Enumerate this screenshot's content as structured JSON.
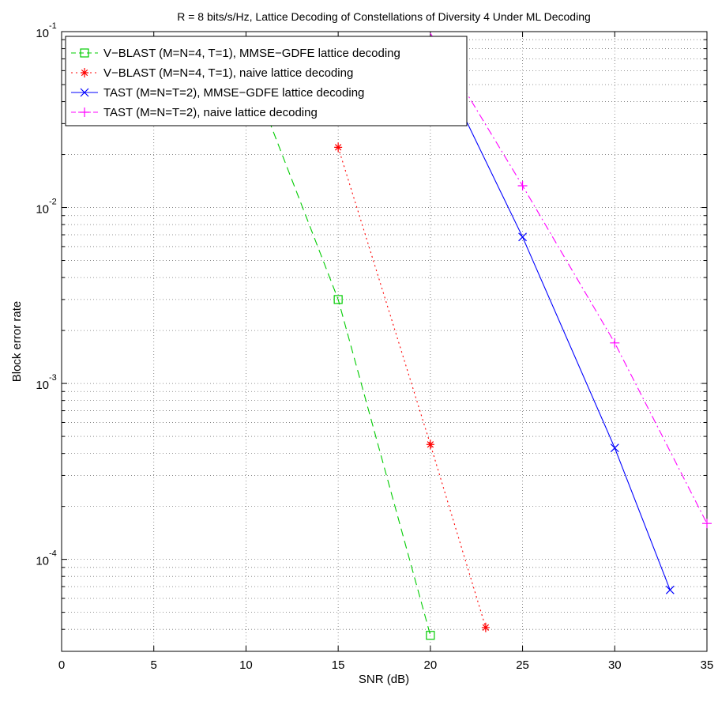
{
  "chart_data": {
    "type": "line",
    "title": "R = 8 bits/s/Hz, Lattice Decoding of Constellations of Diversity 4 Under ML Decoding",
    "xlabel": "SNR (dB)",
    "ylabel": "Block error rate",
    "xlim": [
      0,
      35
    ],
    "ylim": [
      3e-05,
      0.1
    ],
    "yscale": "log",
    "grid": true,
    "legend_position": "top-left",
    "x_ticks": [
      0,
      5,
      10,
      15,
      20,
      25,
      30,
      35
    ],
    "x_tick_labels": [
      "0",
      "5",
      "10",
      "15",
      "20",
      "25",
      "30",
      "35"
    ],
    "y_ticks": [
      0.0001,
      0.001,
      0.01,
      0.1
    ],
    "y_tick_labels": [
      {
        "base": "10",
        "exp": "-4"
      },
      {
        "base": "10",
        "exp": "-3"
      },
      {
        "base": "10",
        "exp": "-2"
      },
      {
        "base": "10",
        "exp": "-1"
      }
    ],
    "series": [
      {
        "name": "V−BLAST (M=N=4, T=1), MMSE−GDFE lattice decoding",
        "color": "#00cc00",
        "line_style": "dashed",
        "marker": "square",
        "x": [
          10,
          15,
          20
        ],
        "y": [
          0.068,
          0.003,
          3.7e-05
        ]
      },
      {
        "name": "V−BLAST (M=N=4, T=1), naive lattice decoding",
        "color": "#ff0000",
        "line_style": "dotted",
        "marker": "asterisk",
        "x": [
          15,
          20,
          23
        ],
        "y": [
          0.022,
          0.00045,
          4.1e-05
        ]
      },
      {
        "name": "TAST (M=N=T=2), MMSE−GDFE lattice decoding",
        "color": "#0000ff",
        "line_style": "solid",
        "marker": "x",
        "x": [
          20,
          25,
          30,
          33
        ],
        "y": [
          0.082,
          0.0068,
          0.00043,
          6.7e-05
        ]
      },
      {
        "name": "TAST (M=N=T=2), naive lattice decoding",
        "color": "#ff00ff",
        "line_style": "dashdot",
        "marker": "plus",
        "x": [
          20,
          25,
          30,
          35
        ],
        "y": [
          0.098,
          0.0133,
          0.0017,
          0.00016
        ]
      }
    ]
  }
}
